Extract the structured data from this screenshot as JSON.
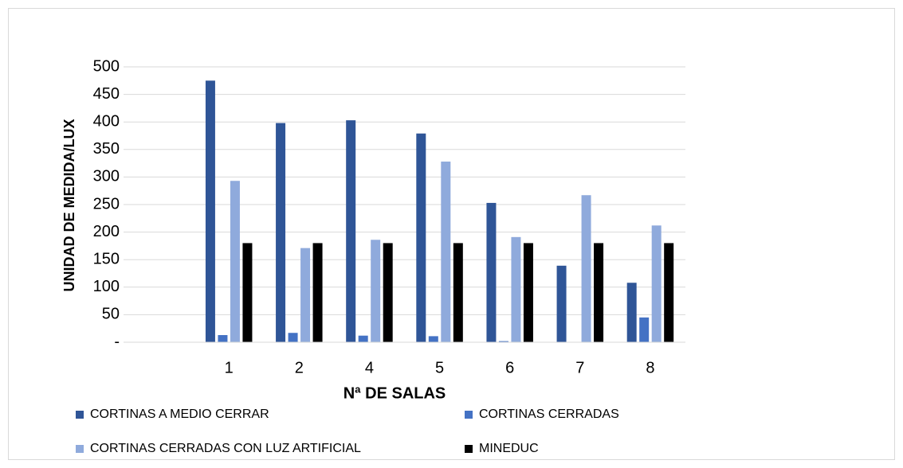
{
  "chart_data": {
    "type": "bar",
    "categories": [
      null,
      "1",
      "2",
      "4",
      "5",
      "6",
      "7",
      "8"
    ],
    "series": [
      {
        "name": "CORTINAS A MEDIO CERRAR",
        "color": "#2f5597",
        "values": [
          null,
          475,
          398,
          403,
          379,
          253,
          139,
          108
        ]
      },
      {
        "name": "CORTINAS CERRADAS",
        "color": "#4472c4",
        "values": [
          null,
          13,
          17,
          12,
          11,
          2,
          0,
          45
        ]
      },
      {
        "name": "CORTINAS CERRADAS CON LUZ ARTIFICIAL",
        "color": "#8faadc",
        "values": [
          null,
          293,
          171,
          186,
          328,
          191,
          267,
          212
        ]
      },
      {
        "name": "MINEDUC",
        "color": "#000000",
        "values": [
          null,
          180,
          180,
          180,
          180,
          180,
          180,
          180
        ]
      }
    ],
    "xlabel": "Nª DE SALAS",
    "ylabel": "UNIDAD DE MEDIDA/LUX",
    "ylim": [
      0,
      500
    ],
    "yticks": [
      {
        "value": 0,
        "label": "-"
      },
      50,
      100,
      150,
      200,
      250,
      300,
      350,
      400,
      450,
      500
    ],
    "grid": true,
    "legend": "bottom"
  }
}
